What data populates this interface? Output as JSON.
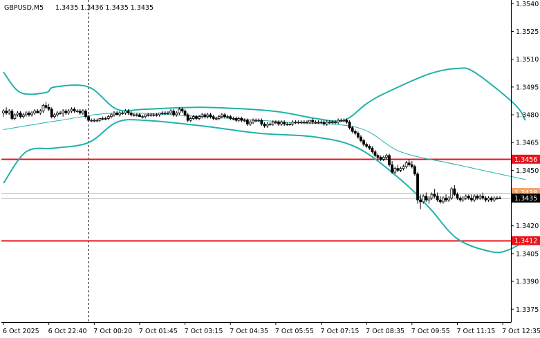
{
  "header": {
    "symbol_tf": "GBPUSD,M5",
    "ohlc": "1.3435 1.3436 1.3435 1.3435"
  },
  "chart_data": {
    "type": "candlestick",
    "title": "GBPUSD,M5",
    "ylim": [
      1.3368,
      1.3542
    ],
    "y_ticks": [
      "1.3540",
      "1.3525",
      "1.3510",
      "1.3495",
      "1.3480",
      "1.3465",
      "1.3450",
      "1.3420",
      "1.3405",
      "1.3390",
      "1.3375"
    ],
    "x_ticks": [
      "6 Oct 2025",
      "6 Oct 22:40",
      "7 Oct 00:20",
      "7 Oct 01:45",
      "7 Oct 03:15",
      "7 Oct 04:35",
      "7 Oct 05:55",
      "7 Oct 07:15",
      "7 Oct 08:35",
      "7 Oct 09:55",
      "7 Oct 11:15",
      "7 Oct 12:35"
    ],
    "grid": false,
    "horizontal_levels": [
      {
        "label": "1.3456",
        "value": 1.3456,
        "color": "#e8141c"
      },
      {
        "label": "1.3412",
        "value": 1.3412,
        "color": "#e8141c"
      },
      {
        "label": "1.3438",
        "value": 1.3438,
        "color": "#f5a36c",
        "style": "thin"
      }
    ],
    "current_price": {
      "label": "1.3435",
      "value": 1.3435
    },
    "vertical_marker": {
      "x_index": 30
    },
    "bollinger": {
      "color": "#20b2aa",
      "upper": [
        [
          0,
          1.3503
        ],
        [
          6,
          1.3492
        ],
        [
          15,
          1.3492
        ],
        [
          18,
          1.3495
        ],
        [
          30,
          1.3495
        ],
        [
          40,
          1.3483
        ],
        [
          50,
          1.3483
        ],
        [
          70,
          1.3484
        ],
        [
          95,
          1.3482
        ],
        [
          110,
          1.3478
        ],
        [
          120,
          1.3477
        ],
        [
          128,
          1.3486
        ],
        [
          135,
          1.3492
        ],
        [
          150,
          1.3502
        ],
        [
          160,
          1.3505
        ],
        [
          166,
          1.3503
        ],
        [
          180,
          1.3486
        ],
        [
          184,
          1.3477
        ]
      ],
      "middle": [
        [
          0,
          1.3472
        ],
        [
          20,
          1.3477
        ],
        [
          40,
          1.3481
        ],
        [
          70,
          1.3479
        ],
        [
          100,
          1.3476
        ],
        [
          125,
          1.3473
        ],
        [
          140,
          1.346
        ],
        [
          160,
          1.3453
        ],
        [
          184,
          1.3445
        ]
      ],
      "lower": [
        [
          0,
          1.3443
        ],
        [
          8,
          1.346
        ],
        [
          18,
          1.3462
        ],
        [
          30,
          1.3465
        ],
        [
          40,
          1.3476
        ],
        [
          50,
          1.3477
        ],
        [
          70,
          1.3474
        ],
        [
          90,
          1.347
        ],
        [
          110,
          1.3468
        ],
        [
          125,
          1.3462
        ],
        [
          140,
          1.3445
        ],
        [
          150,
          1.343
        ],
        [
          160,
          1.3413
        ],
        [
          172,
          1.3406
        ],
        [
          178,
          1.3407
        ],
        [
          184,
          1.3412
        ]
      ]
    },
    "candles": [
      [
        1.3481,
        1.3483,
        1.3479,
        1.3482
      ],
      [
        1.3482,
        1.3484,
        1.348,
        1.3481
      ],
      [
        1.3481,
        1.3483,
        1.348,
        1.3482
      ],
      [
        1.3482,
        1.3483,
        1.3477,
        1.3478
      ],
      [
        1.3478,
        1.3481,
        1.3477,
        1.348
      ],
      [
        1.348,
        1.3482,
        1.3479,
        1.3481
      ],
      [
        1.3481,
        1.3482,
        1.3478,
        1.3479
      ],
      [
        1.3479,
        1.3481,
        1.3478,
        1.348
      ],
      [
        1.348,
        1.3482,
        1.3479,
        1.3481
      ],
      [
        1.3481,
        1.3482,
        1.3479,
        1.348
      ],
      [
        1.348,
        1.3482,
        1.3479,
        1.3481
      ],
      [
        1.3481,
        1.3483,
        1.348,
        1.3482
      ],
      [
        1.3482,
        1.3483,
        1.3481,
        1.3481
      ],
      [
        1.3481,
        1.3483,
        1.348,
        1.3482
      ],
      [
        1.3482,
        1.3486,
        1.3481,
        1.3485
      ],
      [
        1.3485,
        1.3487,
        1.3483,
        1.3484
      ],
      [
        1.3484,
        1.3486,
        1.3482,
        1.3483
      ],
      [
        1.3483,
        1.3484,
        1.3478,
        1.3479
      ],
      [
        1.3479,
        1.3481,
        1.3478,
        1.348
      ],
      [
        1.348,
        1.3482,
        1.3479,
        1.3481
      ],
      [
        1.3481,
        1.3482,
        1.348,
        1.3481
      ],
      [
        1.3481,
        1.3483,
        1.3479,
        1.3482
      ],
      [
        1.3482,
        1.3483,
        1.348,
        1.3481
      ],
      [
        1.3481,
        1.3483,
        1.348,
        1.3482
      ],
      [
        1.3482,
        1.3484,
        1.3481,
        1.3483
      ],
      [
        1.3483,
        1.3484,
        1.3481,
        1.3482
      ],
      [
        1.3482,
        1.3483,
        1.3481,
        1.3482
      ],
      [
        1.3482,
        1.3483,
        1.348,
        1.3481
      ],
      [
        1.3481,
        1.3483,
        1.348,
        1.3482
      ],
      [
        1.3482,
        1.3483,
        1.3478,
        1.3479
      ],
      [
        1.3479,
        1.348,
        1.3476,
        1.3477
      ],
      [
        1.3477,
        1.3478,
        1.3476,
        1.3477
      ],
      [
        1.3477,
        1.3478,
        1.3476,
        1.3477
      ],
      [
        1.3477,
        1.3478,
        1.3476,
        1.3477
      ],
      [
        1.3477,
        1.3478,
        1.3476,
        1.3478
      ],
      [
        1.3478,
        1.3479,
        1.3477,
        1.3478
      ],
      [
        1.3478,
        1.3479,
        1.3477,
        1.3478
      ],
      [
        1.3478,
        1.348,
        1.3477,
        1.3479
      ],
      [
        1.3479,
        1.3481,
        1.3478,
        1.348
      ],
      [
        1.348,
        1.3482,
        1.3479,
        1.3481
      ],
      [
        1.3481,
        1.3482,
        1.348,
        1.348
      ],
      [
        1.348,
        1.3482,
        1.3479,
        1.3481
      ],
      [
        1.3481,
        1.3482,
        1.348,
        1.3481
      ],
      [
        1.3481,
        1.3483,
        1.348,
        1.3482
      ],
      [
        1.3482,
        1.3483,
        1.348,
        1.3481
      ],
      [
        1.3481,
        1.3482,
        1.3479,
        1.348
      ],
      [
        1.348,
        1.3481,
        1.3479,
        1.348
      ],
      [
        1.348,
        1.3481,
        1.3479,
        1.348
      ],
      [
        1.348,
        1.3481,
        1.3479,
        1.3479
      ],
      [
        1.3479,
        1.348,
        1.3478,
        1.3479
      ],
      [
        1.3479,
        1.348,
        1.3478,
        1.348
      ],
      [
        1.348,
        1.3481,
        1.3479,
        1.348
      ],
      [
        1.348,
        1.3481,
        1.3479,
        1.348
      ],
      [
        1.348,
        1.3481,
        1.3479,
        1.348
      ],
      [
        1.348,
        1.3481,
        1.3479,
        1.348
      ],
      [
        1.348,
        1.3481,
        1.3479,
        1.3481
      ],
      [
        1.3481,
        1.3482,
        1.348,
        1.3481
      ],
      [
        1.3481,
        1.3482,
        1.348,
        1.3481
      ],
      [
        1.3481,
        1.3482,
        1.348,
        1.3481
      ],
      [
        1.3481,
        1.3483,
        1.348,
        1.3482
      ],
      [
        1.3482,
        1.3483,
        1.3479,
        1.348
      ],
      [
        1.348,
        1.3482,
        1.3479,
        1.3481
      ],
      [
        1.3481,
        1.3484,
        1.348,
        1.3483
      ],
      [
        1.3483,
        1.3484,
        1.3481,
        1.3482
      ],
      [
        1.3482,
        1.3483,
        1.3479,
        1.348
      ],
      [
        1.348,
        1.3481,
        1.3476,
        1.3477
      ],
      [
        1.3477,
        1.3479,
        1.3476,
        1.3478
      ],
      [
        1.3478,
        1.348,
        1.3477,
        1.3479
      ],
      [
        1.3479,
        1.348,
        1.3477,
        1.3478
      ],
      [
        1.3478,
        1.348,
        1.3477,
        1.3479
      ],
      [
        1.3479,
        1.3481,
        1.3478,
        1.348
      ],
      [
        1.348,
        1.3481,
        1.3478,
        1.3479
      ],
      [
        1.3479,
        1.3481,
        1.3478,
        1.348
      ],
      [
        1.348,
        1.3481,
        1.3478,
        1.3479
      ],
      [
        1.3479,
        1.348,
        1.3477,
        1.3478
      ],
      [
        1.3478,
        1.3479,
        1.3477,
        1.3478
      ],
      [
        1.3478,
        1.348,
        1.3477,
        1.3479
      ],
      [
        1.3479,
        1.3481,
        1.3478,
        1.348
      ],
      [
        1.348,
        1.3481,
        1.3478,
        1.3479
      ],
      [
        1.3479,
        1.348,
        1.3478,
        1.3479
      ],
      [
        1.3479,
        1.348,
        1.3477,
        1.3478
      ],
      [
        1.3478,
        1.3479,
        1.3477,
        1.3478
      ],
      [
        1.3478,
        1.3479,
        1.3476,
        1.3477
      ],
      [
        1.3477,
        1.3479,
        1.3476,
        1.3478
      ],
      [
        1.3478,
        1.3479,
        1.3476,
        1.3477
      ],
      [
        1.3477,
        1.3478,
        1.3476,
        1.3477
      ],
      [
        1.3477,
        1.3478,
        1.3474,
        1.3475
      ],
      [
        1.3475,
        1.3477,
        1.3474,
        1.3476
      ],
      [
        1.3476,
        1.3478,
        1.3475,
        1.3477
      ],
      [
        1.3477,
        1.3478,
        1.3476,
        1.3477
      ],
      [
        1.3477,
        1.3478,
        1.3476,
        1.3477
      ],
      [
        1.3477,
        1.3478,
        1.3474,
        1.3475
      ],
      [
        1.3475,
        1.3476,
        1.3473,
        1.3474
      ],
      [
        1.3474,
        1.3476,
        1.3473,
        1.3475
      ],
      [
        1.3475,
        1.3476,
        1.3474,
        1.3475
      ],
      [
        1.3475,
        1.3477,
        1.3474,
        1.3476
      ],
      [
        1.3476,
        1.3477,
        1.3475,
        1.3476
      ],
      [
        1.3476,
        1.3477,
        1.3474,
        1.3475
      ],
      [
        1.3475,
        1.3477,
        1.3474,
        1.3476
      ],
      [
        1.3476,
        1.3477,
        1.3474,
        1.3475
      ],
      [
        1.3475,
        1.3476,
        1.3474,
        1.3475
      ],
      [
        1.3475,
        1.3476,
        1.3474,
        1.3475
      ],
      [
        1.3475,
        1.3477,
        1.3474,
        1.3476
      ],
      [
        1.3476,
        1.3477,
        1.3475,
        1.3476
      ],
      [
        1.3476,
        1.3477,
        1.3475,
        1.3476
      ],
      [
        1.3476,
        1.3477,
        1.3475,
        1.3476
      ],
      [
        1.3476,
        1.3477,
        1.3475,
        1.3476
      ],
      [
        1.3476,
        1.3477,
        1.3475,
        1.3476
      ],
      [
        1.3476,
        1.3477,
        1.3475,
        1.3477
      ],
      [
        1.3477,
        1.3478,
        1.3475,
        1.3476
      ],
      [
        1.3476,
        1.3477,
        1.3475,
        1.3476
      ],
      [
        1.3476,
        1.3477,
        1.3475,
        1.3476
      ],
      [
        1.3476,
        1.3477,
        1.3475,
        1.3476
      ],
      [
        1.3476,
        1.3477,
        1.3474,
        1.3475
      ],
      [
        1.3475,
        1.3477,
        1.3474,
        1.3476
      ],
      [
        1.3476,
        1.3477,
        1.3475,
        1.3476
      ],
      [
        1.3476,
        1.3477,
        1.3475,
        1.3476
      ],
      [
        1.3476,
        1.3477,
        1.3475,
        1.3476
      ],
      [
        1.3476,
        1.3478,
        1.3475,
        1.3477
      ],
      [
        1.3477,
        1.3478,
        1.3476,
        1.3477
      ],
      [
        1.3477,
        1.3478,
        1.3476,
        1.3477
      ],
      [
        1.3477,
        1.3478,
        1.3475,
        1.3476
      ],
      [
        1.3476,
        1.3477,
        1.3472,
        1.3473
      ],
      [
        1.3473,
        1.3474,
        1.347,
        1.3471
      ],
      [
        1.3471,
        1.3472,
        1.3469,
        1.347
      ],
      [
        1.347,
        1.3471,
        1.3467,
        1.3468
      ],
      [
        1.3468,
        1.3469,
        1.3465,
        1.3466
      ],
      [
        1.3466,
        1.3467,
        1.3463,
        1.3464
      ],
      [
        1.3464,
        1.3465,
        1.3462,
        1.3463
      ],
      [
        1.3463,
        1.3464,
        1.3461,
        1.3462
      ],
      [
        1.3462,
        1.3463,
        1.3459,
        1.346
      ],
      [
        1.346,
        1.3461,
        1.3457,
        1.3458
      ],
      [
        1.3458,
        1.3459,
        1.3456,
        1.3457
      ],
      [
        1.3457,
        1.3458,
        1.3455,
        1.3456
      ],
      [
        1.3456,
        1.3458,
        1.3455,
        1.3457
      ],
      [
        1.3457,
        1.3459,
        1.3456,
        1.3458
      ],
      [
        1.3458,
        1.3459,
        1.3452,
        1.3453
      ],
      [
        1.3453,
        1.3455,
        1.3448,
        1.3449
      ],
      [
        1.3449,
        1.3452,
        1.3448,
        1.3451
      ],
      [
        1.3451,
        1.3453,
        1.3449,
        1.345
      ],
      [
        1.345,
        1.3452,
        1.3449,
        1.3451
      ],
      [
        1.3451,
        1.3453,
        1.345,
        1.3452
      ],
      [
        1.3452,
        1.3455,
        1.3451,
        1.3454
      ],
      [
        1.3454,
        1.3456,
        1.3452,
        1.3453
      ],
      [
        1.3453,
        1.3455,
        1.3451,
        1.3452
      ],
      [
        1.3452,
        1.3453,
        1.3447,
        1.3448
      ],
      [
        1.3448,
        1.3449,
        1.3432,
        1.3434
      ],
      [
        1.3434,
        1.3437,
        1.3429,
        1.3433
      ],
      [
        1.3433,
        1.3437,
        1.3432,
        1.3436
      ],
      [
        1.3436,
        1.3438,
        1.3433,
        1.3434
      ],
      [
        1.3434,
        1.3436,
        1.3432,
        1.3435
      ],
      [
        1.3435,
        1.3438,
        1.3434,
        1.3437
      ],
      [
        1.3437,
        1.344,
        1.3435,
        1.3436
      ],
      [
        1.3436,
        1.3438,
        1.3433,
        1.3434
      ],
      [
        1.3434,
        1.3436,
        1.3432,
        1.3433
      ],
      [
        1.3433,
        1.3436,
        1.3432,
        1.3435
      ],
      [
        1.3435,
        1.3437,
        1.3433,
        1.3434
      ],
      [
        1.3434,
        1.3436,
        1.3433,
        1.3435
      ],
      [
        1.3435,
        1.3441,
        1.3434,
        1.344
      ],
      [
        1.344,
        1.3442,
        1.3436,
        1.3437
      ],
      [
        1.3437,
        1.3438,
        1.3434,
        1.3435
      ],
      [
        1.3435,
        1.3436,
        1.3433,
        1.3434
      ],
      [
        1.3434,
        1.3436,
        1.3433,
        1.3435
      ],
      [
        1.3435,
        1.3437,
        1.3434,
        1.3436
      ],
      [
        1.3436,
        1.3437,
        1.3434,
        1.3435
      ],
      [
        1.3435,
        1.3437,
        1.3433,
        1.3434
      ],
      [
        1.3434,
        1.3437,
        1.3433,
        1.3436
      ],
      [
        1.3436,
        1.3437,
        1.3434,
        1.3435
      ],
      [
        1.3435,
        1.3437,
        1.3434,
        1.3436
      ],
      [
        1.3436,
        1.3438,
        1.3434,
        1.3435
      ],
      [
        1.3435,
        1.3436,
        1.3433,
        1.3434
      ],
      [
        1.3434,
        1.3436,
        1.3433,
        1.3435
      ],
      [
        1.3435,
        1.3436,
        1.3433,
        1.3434
      ],
      [
        1.3434,
        1.3436,
        1.3433,
        1.3435
      ],
      [
        1.3435,
        1.3436,
        1.3434,
        1.3435
      ],
      [
        1.3435,
        1.3436,
        1.3435,
        1.3435
      ]
    ]
  }
}
